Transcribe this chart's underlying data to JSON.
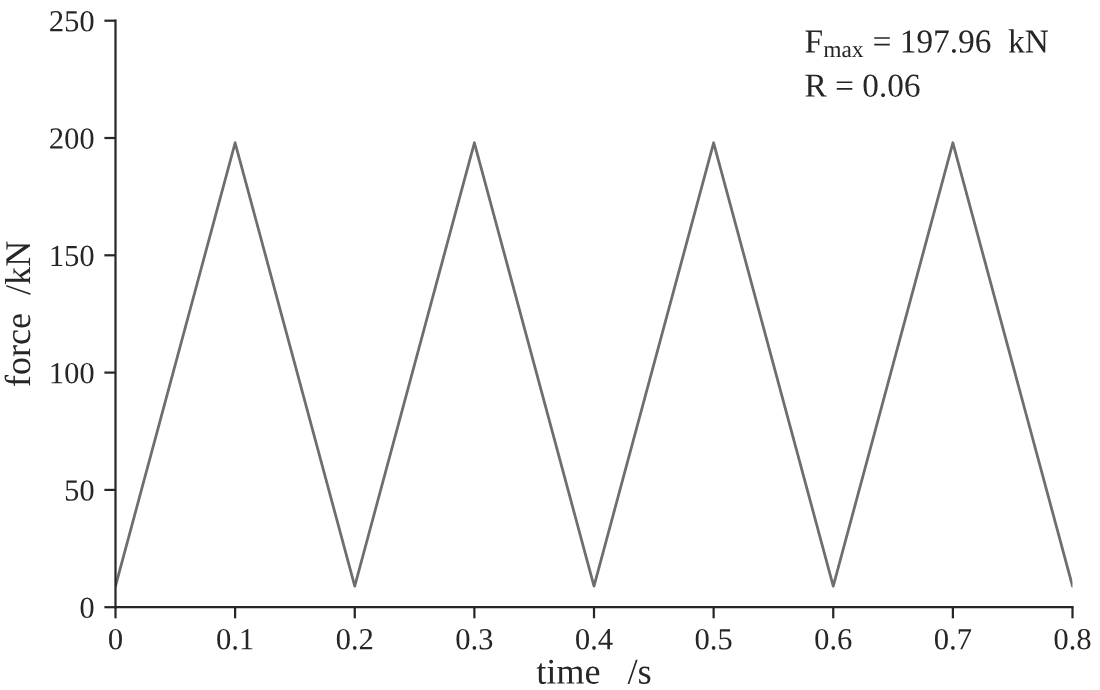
{
  "chart_data": {
    "type": "line",
    "xlabel": "time   /s",
    "ylabel": "force  /kN",
    "x": [
      0,
      0.1,
      0.2,
      0.3,
      0.4,
      0.5,
      0.6,
      0.7,
      0.8
    ],
    "series": [
      {
        "color": "#6e6e6e",
        "values": [
          9,
          197.96,
          9,
          197.96,
          9,
          197.96,
          9,
          197.96,
          9
        ]
      }
    ],
    "xlim": [
      0,
      0.8
    ],
    "ylim": [
      0,
      250
    ],
    "xticks": [
      0,
      0.1,
      0.2,
      0.3,
      0.4,
      0.5,
      0.6,
      0.7,
      0.8
    ],
    "yticks": [
      0,
      50,
      100,
      150,
      200,
      250
    ],
    "annotations": [
      "F$_{max}$ = 197.96  kN",
      "R = 0.06"
    ],
    "grid": false,
    "legend": false,
    "marker": "none",
    "line_style": "solid"
  }
}
